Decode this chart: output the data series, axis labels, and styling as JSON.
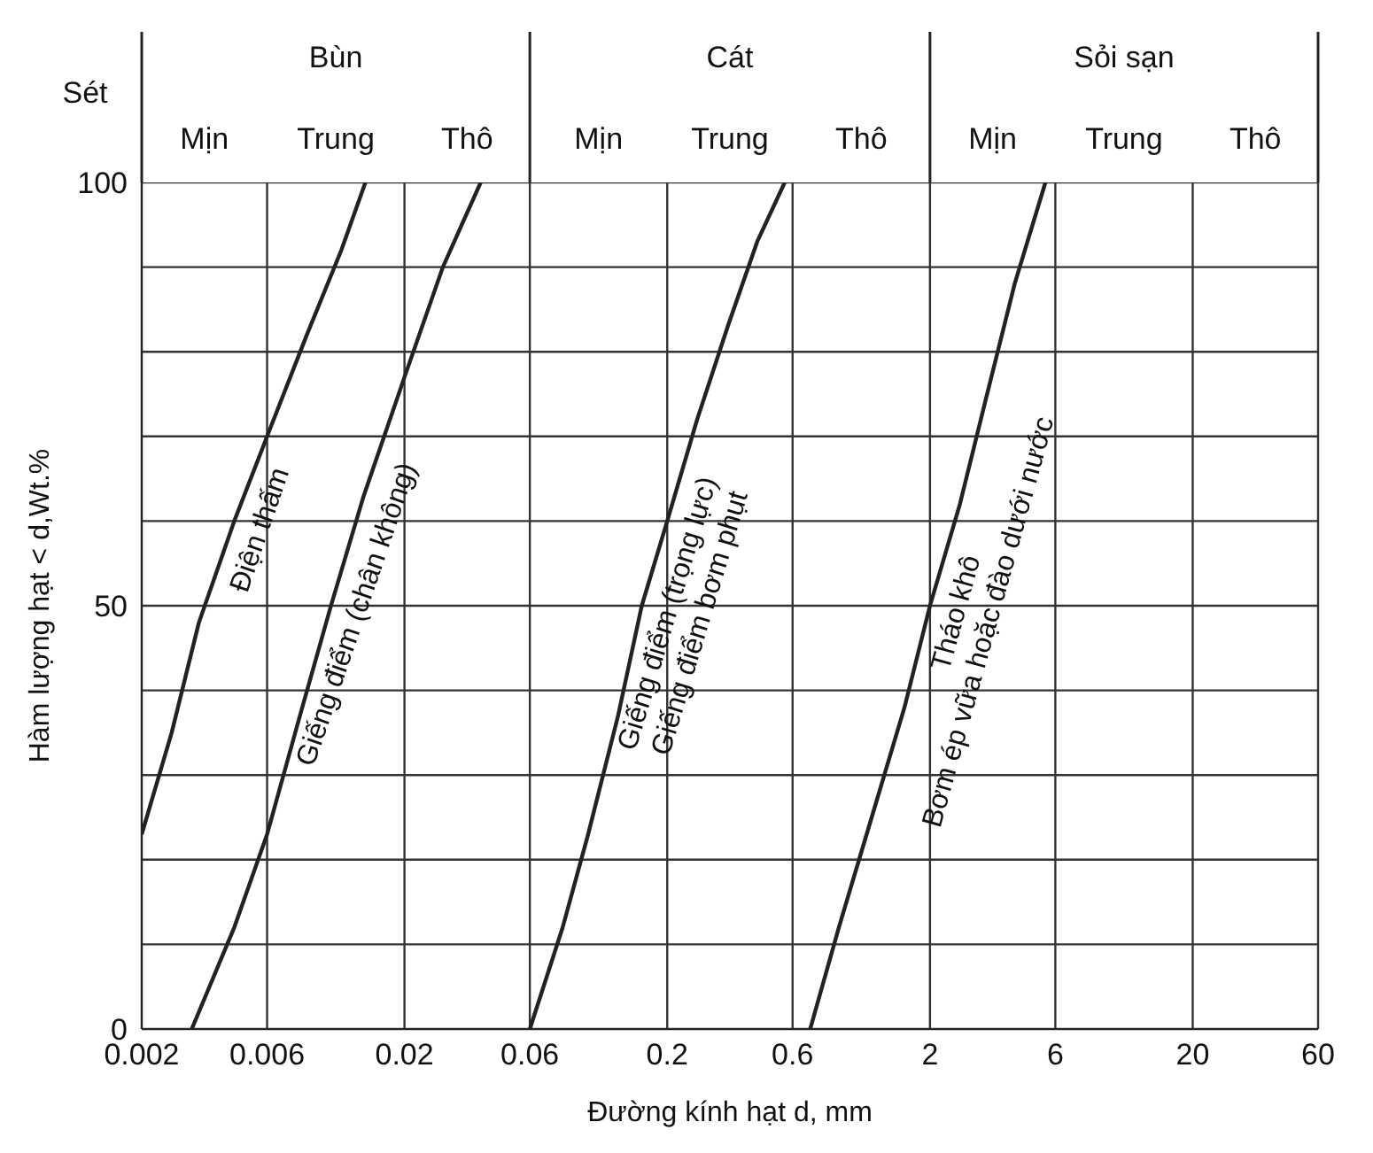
{
  "chart_data": {
    "type": "line",
    "xlabel": "Đường kính hạt d, mm",
    "ylabel": "Hàm lượng hạt < d,Wt.%",
    "log": "x",
    "xlim": [
      0.002,
      60
    ],
    "xticks": [
      0.002,
      0.006,
      0.02,
      0.06,
      0.2,
      0.6,
      2,
      6,
      20,
      60
    ],
    "ylim": [
      0,
      100
    ],
    "yticks": [
      0,
      {
        "value": 10,
        "label": null
      },
      {
        "value": 20,
        "label": null
      },
      {
        "value": 30,
        "label": null
      },
      {
        "value": 40,
        "label": null
      },
      50,
      {
        "value": 60,
        "label": null
      },
      {
        "value": 70,
        "label": null
      },
      {
        "value": 80,
        "label": null
      },
      {
        "value": 90,
        "label": null
      },
      100
    ],
    "grid": true,
    "marker": "none",
    "line_style": "solid",
    "series": [
      {
        "name": "Điện thấm",
        "color": "#222222",
        "x": [
          0.002,
          0.0026,
          0.0033,
          0.0045,
          0.006,
          0.0085,
          0.0115,
          0.0142
        ],
        "values": [
          23,
          35,
          48,
          60,
          70,
          82,
          92,
          100
        ]
      },
      {
        "name": "Giếng điểm (chân không)",
        "color": "#222222",
        "x": [
          0.0031,
          0.0045,
          0.006,
          0.008,
          0.0105,
          0.014,
          0.02,
          0.028,
          0.039
        ],
        "values": [
          0,
          12,
          23,
          37,
          50,
          63,
          77,
          90,
          100
        ]
      },
      {
        "name": "Giếng điểm (trọng lực)\nGiếng điểm bơm phụt",
        "color": "#222222",
        "x": [
          0.06,
          0.08,
          0.1,
          0.13,
          0.16,
          0.2,
          0.26,
          0.34,
          0.44,
          0.56
        ],
        "values": [
          0,
          12,
          23,
          37,
          50,
          60,
          72,
          83,
          93,
          100
        ]
      },
      {
        "name": "Tháo khô\nBơm ép vữa hoặc đào dưới nước",
        "color": "#222222",
        "x": [
          0.7,
          0.9,
          1.2,
          1.6,
          2,
          2.6,
          3.3,
          4.2,
          5.5
        ],
        "values": [
          0,
          12,
          25,
          38,
          50,
          62,
          75,
          88,
          100
        ]
      }
    ],
    "annotations": [
      "Sét",
      "Bùn",
      "Mịn",
      "Trung",
      "Thô",
      "Cát",
      "Mịn",
      "Trung",
      "Thô",
      "Sỏi sạn",
      "Mịn",
      "Trung",
      "Thô"
    ]
  }
}
